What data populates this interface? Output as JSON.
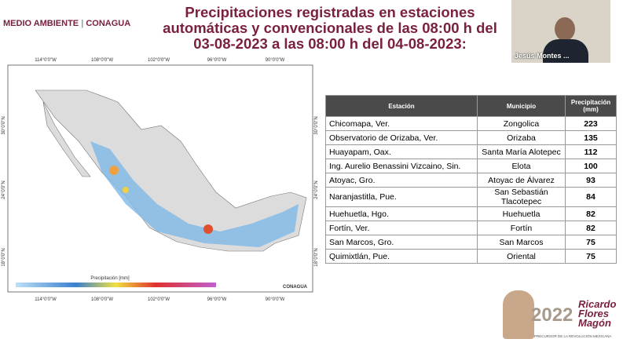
{
  "header": {
    "brand_left": "MEDIO AMBIENTE",
    "brand_right": "CONAGUA",
    "title": [
      "Precipitaciones registradas en estaciones",
      "automáticas y convencionales de las 08:00 h del",
      "03-08-2023 a las 08:00 h del 04-08-2023:"
    ]
  },
  "webcam": {
    "name": "Jesús Montes ..."
  },
  "map": {
    "lon_ticks": [
      "114°0'0\"W",
      "108°0'0\"W",
      "102°0'0\"W",
      "96°0'0\"W",
      "90°0'0\"W"
    ],
    "lat_ticks": [
      "30°0'0\"N",
      "24°0'0\"N",
      "18°0'0\"N"
    ],
    "legend_title": "Precipitación [mm]",
    "logo": "CONAGUA"
  },
  "table": {
    "headers": [
      "Estación",
      "Municipio",
      "Precipitación (mm)"
    ],
    "rows": [
      [
        "Chicomapa, Ver.",
        "Zongolica",
        223
      ],
      [
        "Observatorio de Orizaba, Ver.",
        "Orizaba",
        135
      ],
      [
        "Huayapam, Oax.",
        "Santa María Alotepec",
        112
      ],
      [
        "Ing. Aurelio Benassini Vizcaino, Sin.",
        "Elota",
        100
      ],
      [
        "Atoyac, Gro.",
        "Atoyac de Álvarez",
        93
      ],
      [
        "Naranjastitla, Pue.",
        "San Sebastián Tlacotepec",
        84
      ],
      [
        "Huehuetla, Hgo.",
        "Huehuetla",
        82
      ],
      [
        "Fortín, Ver.",
        "Fortín",
        82
      ],
      [
        "San Marcos, Gro.",
        "San Marcos",
        75
      ],
      [
        "Quimixtlán, Pue.",
        "Oriental",
        75
      ]
    ]
  },
  "footer": {
    "year": "2022",
    "name": "Ricardo Flores Magón",
    "caption": "PRECURSOR DE LA REVOLUCIÓN MEXICANA"
  }
}
